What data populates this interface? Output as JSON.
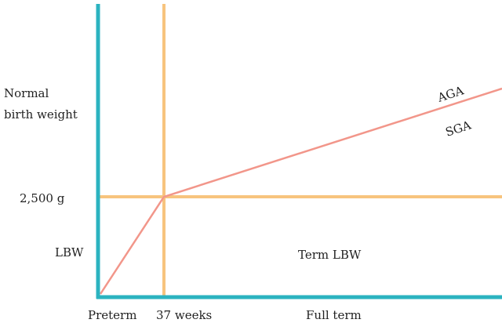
{
  "y_labels": {
    "normal": [
      "Normal",
      "birth weight"
    ],
    "threshold": "2,500 g",
    "low": "LBW"
  },
  "x_labels": {
    "preterm": "Preterm",
    "threshold": "37 weeks",
    "term": "Full term"
  },
  "regions": {
    "term_lbw": "Term LBW"
  },
  "curves": {
    "aga": "AGA",
    "sga": "SGA"
  }
}
